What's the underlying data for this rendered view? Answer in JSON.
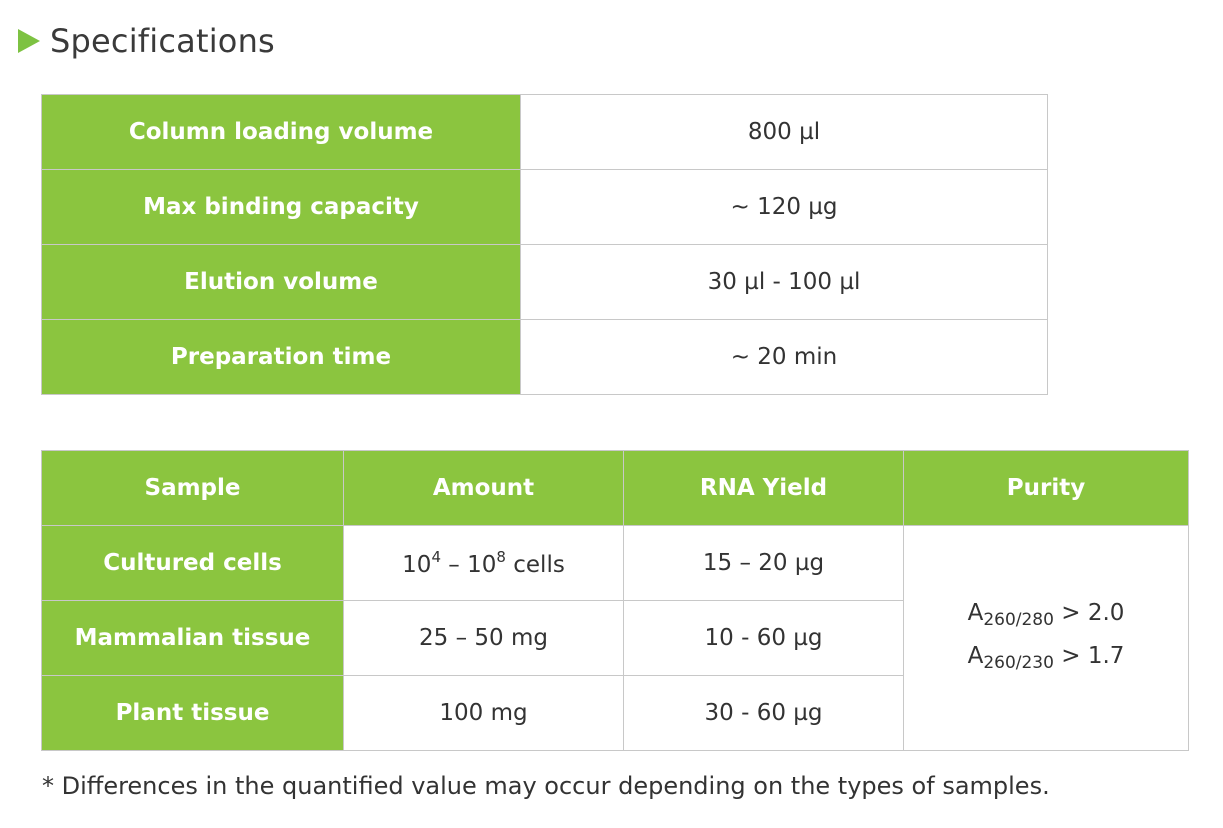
{
  "heading": {
    "title": "Specifications",
    "accent_color": "#8bc53f"
  },
  "specs": [
    {
      "label": "Column loading volume",
      "value": "800 µl"
    },
    {
      "label": "Max binding capacity",
      "value": "~ 120  µg"
    },
    {
      "label": "Elution volume",
      "value": "30  µl - 100  µl"
    },
    {
      "label": "Preparation time",
      "value": "~ 20 min"
    }
  ],
  "samples": {
    "headers": [
      "Sample",
      "Amount",
      "RNA Yield",
      "Purity"
    ],
    "rows": [
      {
        "sample": "Cultured cells",
        "amount_base1": "10",
        "amount_exp1": "4",
        "amount_sep": " – ",
        "amount_base2": "10",
        "amount_exp2": "8",
        "amount_unit": " cells",
        "yield": "15 – 20 µg"
      },
      {
        "sample": "Mammalian tissue",
        "amount": "25 – 50 mg",
        "yield": "10 - 60 µg"
      },
      {
        "sample": "Plant tissue",
        "amount": "100 mg",
        "yield": "30 - 60 µg"
      }
    ],
    "purity": [
      {
        "prefix": "A",
        "subscript": "260/280",
        "suffix": " > 2.0"
      },
      {
        "prefix": "A",
        "subscript": "260/230",
        "suffix": " > 1.7"
      }
    ]
  },
  "footnote": "* Differences in the quantified value may occur depending on the types of samples."
}
